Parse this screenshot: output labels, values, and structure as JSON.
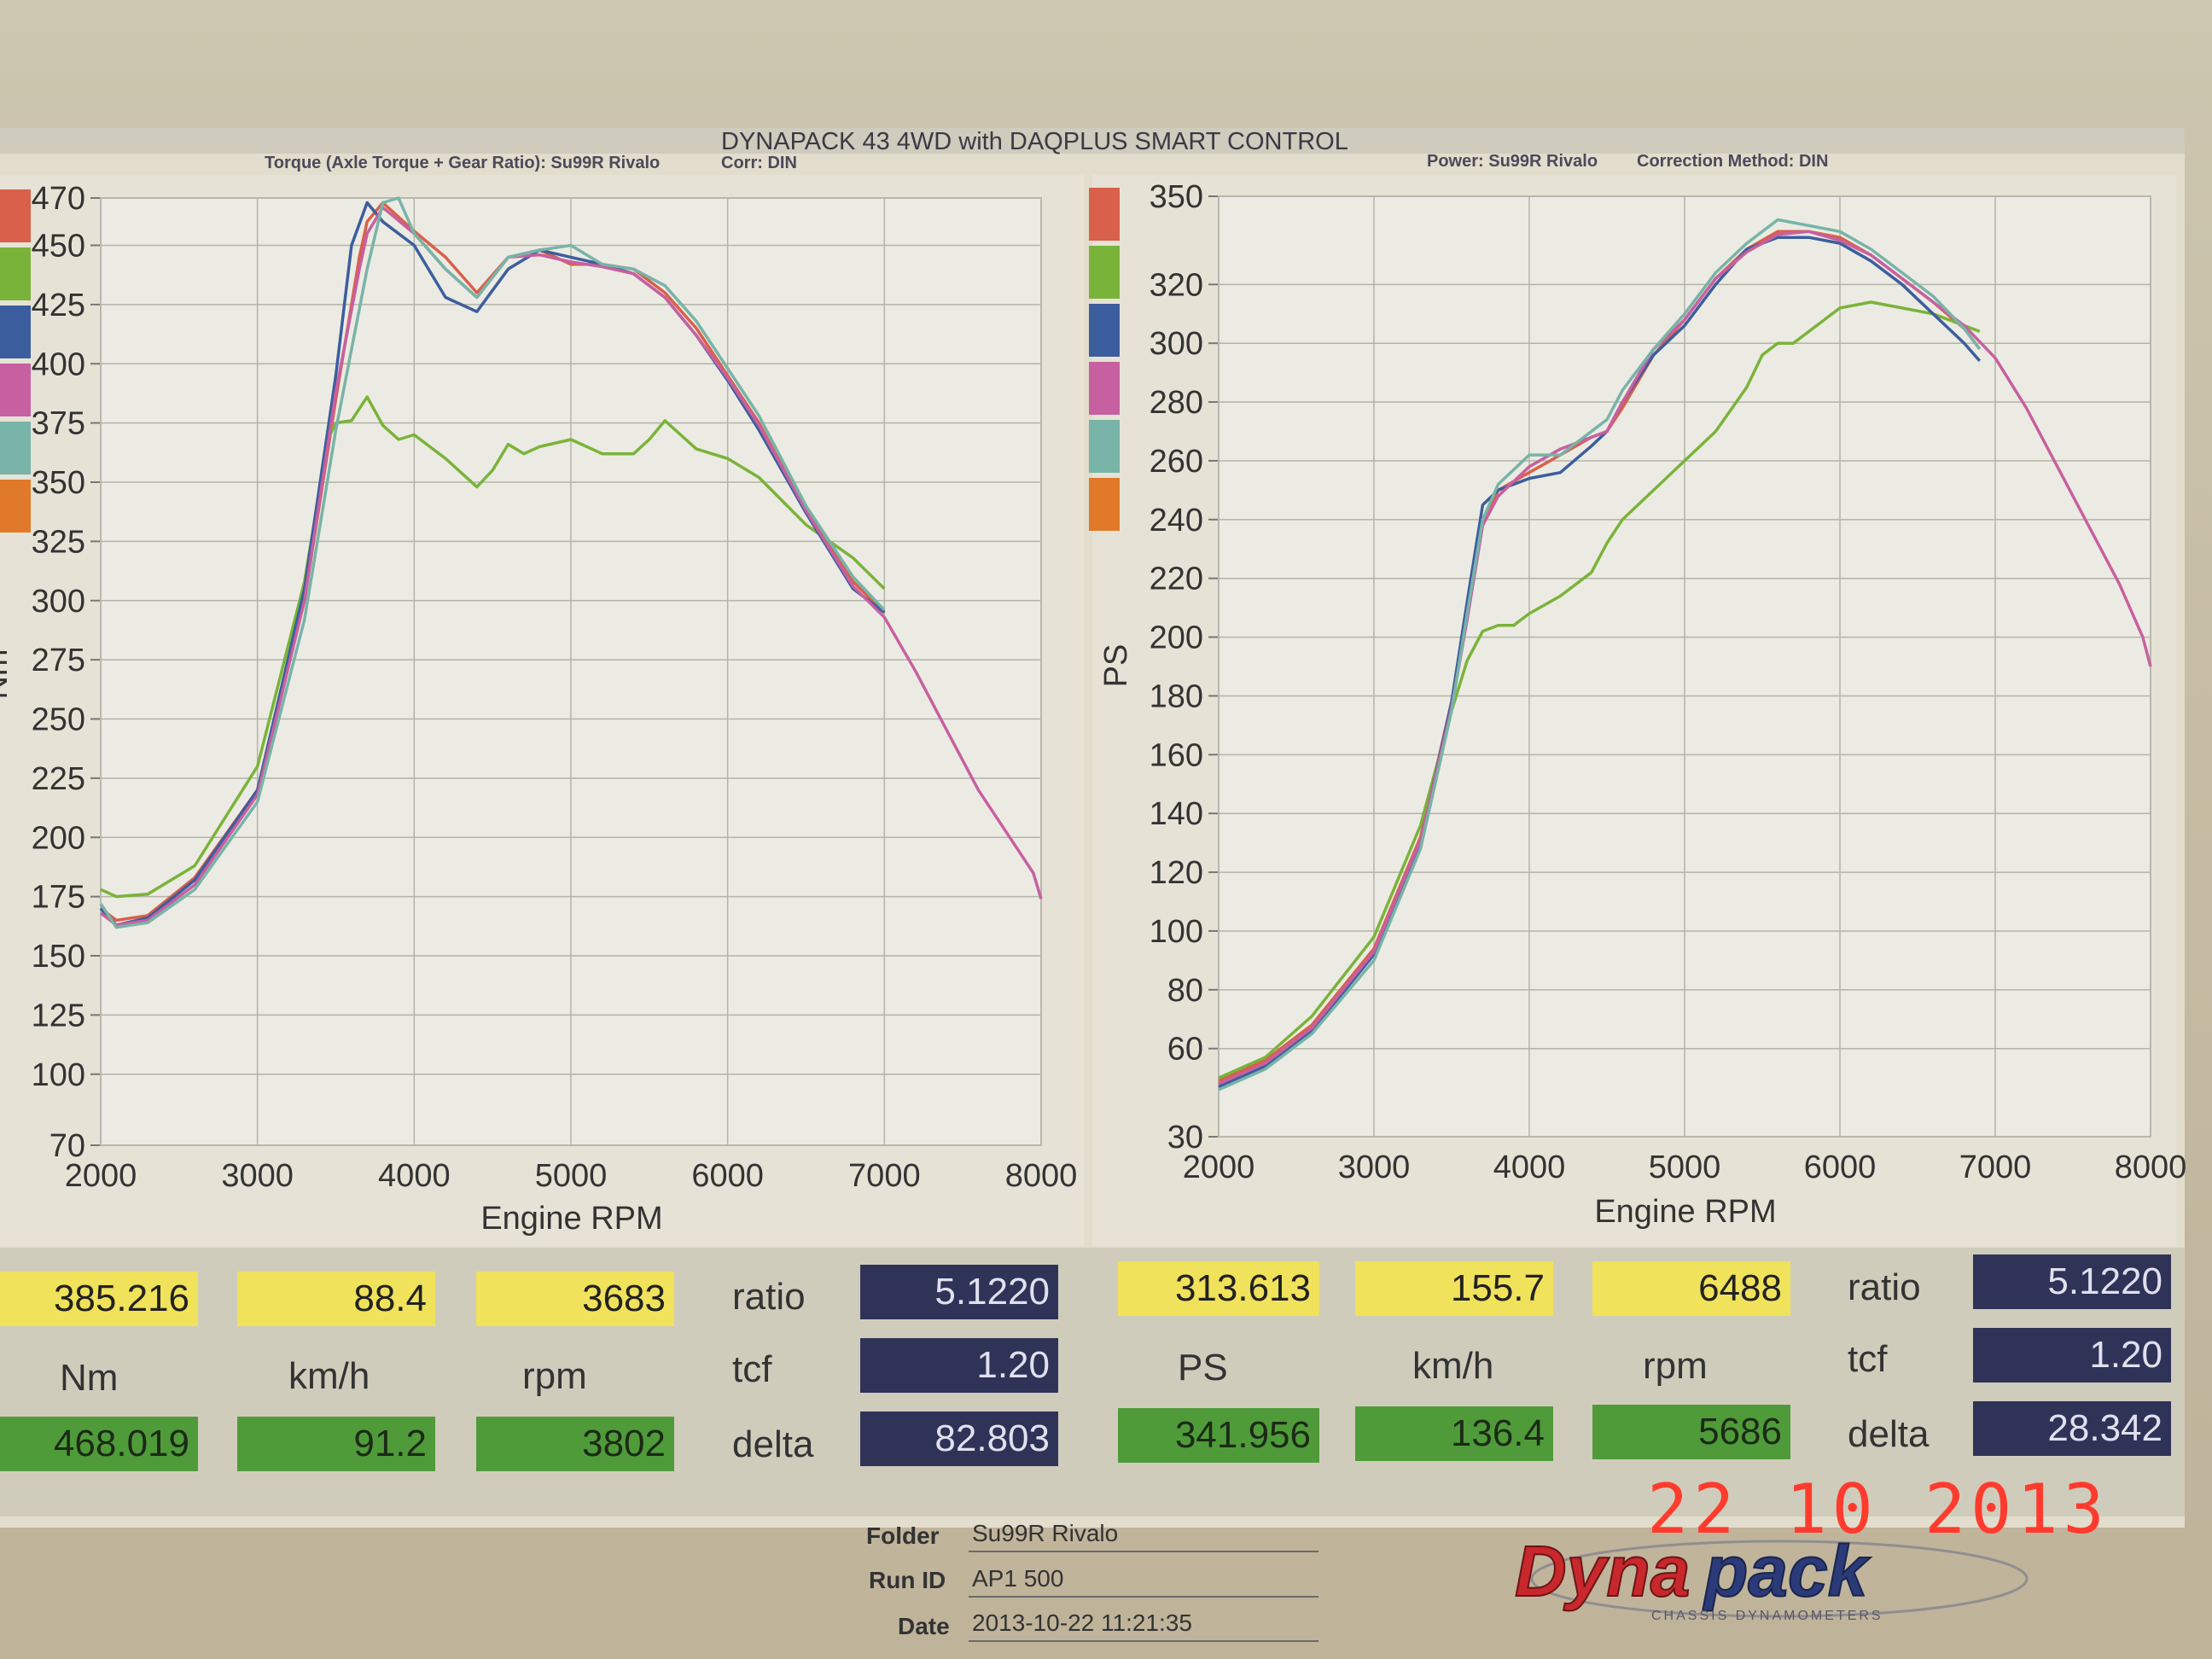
{
  "header": {
    "title": "DYNAPACK 43 4WD with DAQPLUS SMART CONTROL",
    "left_subtitle": "Torque (Axle Torque + Gear Ratio): Su99R Rivalo",
    "left_corr": "Corr: DIN",
    "right_subtitle": "Power: Su99R Rivalo",
    "right_corr": "Correction Method: DIN"
  },
  "colors": {
    "red": "#d9604a",
    "green": "#7ab33a",
    "blue": "#3c5e9e",
    "pink": "#c760a0",
    "teal": "#78b4a8",
    "orange": "#e07a2a"
  },
  "chart_data": [
    {
      "type": "line",
      "title": "",
      "xlabel": "Engine RPM",
      "ylabel": "Nm",
      "xlim": [
        2000,
        8000
      ],
      "ylim": [
        70,
        470
      ],
      "x_ticks": [
        2000,
        3000,
        4000,
        5000,
        6000,
        7000,
        8000
      ],
      "y_ticks": [
        70,
        100,
        125,
        150,
        175,
        200,
        225,
        250,
        275,
        300,
        325,
        350,
        375,
        400,
        425,
        450,
        470
      ],
      "grid": true,
      "legend": "left swatches",
      "series": [
        {
          "color": "red",
          "x": [
            2000,
            2100,
            2300,
            2600,
            3000,
            3300,
            3500,
            3650,
            3700,
            3800,
            4000,
            4200,
            4400,
            4600,
            4800,
            5000,
            5200,
            5400,
            5600,
            5800,
            6000,
            6200,
            6500,
            6800,
            7000
          ],
          "y": [
            170,
            165,
            167,
            183,
            220,
            300,
            385,
            445,
            460,
            468,
            456,
            445,
            430,
            445,
            448,
            442,
            442,
            440,
            430,
            415,
            395,
            375,
            338,
            308,
            295
          ]
        },
        {
          "color": "green",
          "x": [
            2000,
            2100,
            2300,
            2600,
            3000,
            3300,
            3450,
            3500,
            3600,
            3700,
            3800,
            3900,
            4000,
            4200,
            4400,
            4500,
            4600,
            4700,
            4800,
            5000,
            5200,
            5400,
            5500,
            5600,
            5700,
            5800,
            6000,
            6200,
            6500,
            6800,
            7000
          ],
          "y": [
            178,
            175,
            176,
            188,
            230,
            308,
            368,
            375,
            376,
            386,
            374,
            368,
            370,
            360,
            348,
            355,
            366,
            362,
            365,
            368,
            362,
            362,
            368,
            376,
            370,
            364,
            360,
            352,
            332,
            318,
            305
          ]
        },
        {
          "color": "blue",
          "x": [
            2000,
            2100,
            2300,
            2600,
            3000,
            3300,
            3500,
            3600,
            3700,
            3800,
            4000,
            4200,
            4400,
            4600,
            4800,
            5000,
            5200,
            5400,
            5600,
            5800,
            6000,
            6200,
            6500,
            6800,
            7000
          ],
          "y": [
            170,
            163,
            166,
            182,
            220,
            305,
            395,
            450,
            468,
            460,
            450,
            428,
            422,
            440,
            448,
            445,
            442,
            438,
            428,
            412,
            393,
            372,
            337,
            305,
            295
          ]
        },
        {
          "color": "pink",
          "x": [
            2000,
            2100,
            2300,
            2600,
            3000,
            3300,
            3500,
            3650,
            3700,
            3800,
            4000,
            4200,
            4400,
            4600,
            4800,
            5000,
            5200,
            5400,
            5600,
            5800,
            6000,
            6200,
            6500,
            6800,
            7000,
            7200,
            7400,
            7600,
            7800,
            7950,
            8000
          ],
          "y": [
            168,
            163,
            165,
            180,
            218,
            300,
            388,
            440,
            455,
            466,
            455,
            440,
            428,
            445,
            446,
            443,
            441,
            438,
            428,
            412,
            394,
            374,
            338,
            306,
            293,
            270,
            245,
            220,
            200,
            185,
            174
          ]
        },
        {
          "color": "teal",
          "x": [
            2000,
            2100,
            2300,
            2600,
            3000,
            3300,
            3500,
            3700,
            3800,
            3900,
            4000,
            4200,
            4400,
            4600,
            4800,
            5000,
            5200,
            5400,
            5600,
            5800,
            6000,
            6200,
            6500,
            6800,
            7000
          ],
          "y": [
            172,
            162,
            164,
            178,
            215,
            292,
            372,
            440,
            468,
            470,
            455,
            440,
            428,
            445,
            448,
            450,
            442,
            440,
            433,
            418,
            398,
            378,
            340,
            310,
            296
          ]
        }
      ]
    },
    {
      "type": "line",
      "title": "",
      "xlabel": "Engine RPM",
      "ylabel": "PS",
      "xlim": [
        2000,
        8000
      ],
      "ylim": [
        30,
        350
      ],
      "x_ticks": [
        2000,
        3000,
        4000,
        5000,
        6000,
        7000,
        8000
      ],
      "y_ticks": [
        30,
        60,
        80,
        100,
        120,
        140,
        160,
        180,
        200,
        220,
        240,
        260,
        280,
        300,
        320,
        350
      ],
      "grid": true,
      "legend": "left swatches",
      "series": [
        {
          "color": "red",
          "x": [
            2000,
            2300,
            2600,
            3000,
            3300,
            3500,
            3600,
            3700,
            3800,
            4000,
            4200,
            4400,
            4500,
            4600,
            4800,
            5000,
            5200,
            5400,
            5600,
            5800,
            6000,
            6200,
            6400,
            6600,
            6800,
            6900
          ],
          "y": [
            49,
            56,
            68,
            94,
            132,
            178,
            208,
            240,
            250,
            256,
            262,
            268,
            270,
            278,
            296,
            308,
            322,
            332,
            338,
            338,
            336,
            330,
            322,
            314,
            305,
            298
          ]
        },
        {
          "color": "green",
          "x": [
            2000,
            2300,
            2600,
            3000,
            3300,
            3500,
            3600,
            3700,
            3800,
            3900,
            4000,
            4200,
            4400,
            4500,
            4600,
            4800,
            5000,
            5200,
            5400,
            5500,
            5600,
            5700,
            5800,
            6000,
            6200,
            6400,
            6600,
            6800,
            6900
          ],
          "y": [
            50,
            57,
            71,
            98,
            136,
            175,
            192,
            202,
            204,
            204,
            208,
            214,
            222,
            232,
            240,
            250,
            260,
            270,
            285,
            296,
            300,
            300,
            304,
            312,
            314,
            312,
            310,
            306,
            304
          ]
        },
        {
          "color": "blue",
          "x": [
            2000,
            2300,
            2600,
            3000,
            3300,
            3500,
            3600,
            3700,
            3800,
            4000,
            4200,
            4400,
            4500,
            4600,
            4800,
            5000,
            5200,
            5400,
            5600,
            5800,
            6000,
            6200,
            6400,
            6600,
            6800,
            6900
          ],
          "y": [
            47,
            54,
            66,
            92,
            130,
            178,
            212,
            245,
            250,
            254,
            256,
            265,
            270,
            280,
            296,
            306,
            320,
            332,
            336,
            336,
            334,
            328,
            320,
            310,
            300,
            294
          ]
        },
        {
          "color": "pink",
          "x": [
            2000,
            2300,
            2600,
            3000,
            3300,
            3500,
            3600,
            3700,
            3800,
            4000,
            4200,
            4400,
            4500,
            4600,
            4800,
            5000,
            5200,
            5400,
            5600,
            5800,
            6000,
            6200,
            6400,
            6600,
            6800,
            7000,
            7200,
            7400,
            7600,
            7800,
            7950,
            8000
          ],
          "y": [
            48,
            55,
            67,
            93,
            131,
            176,
            206,
            238,
            248,
            258,
            264,
            268,
            270,
            280,
            298,
            308,
            322,
            331,
            337,
            338,
            335,
            330,
            322,
            314,
            306,
            295,
            278,
            258,
            238,
            218,
            200,
            190
          ]
        },
        {
          "color": "teal",
          "x": [
            2000,
            2300,
            2600,
            3000,
            3300,
            3500,
            3600,
            3700,
            3800,
            4000,
            4200,
            4400,
            4500,
            4600,
            4800,
            5000,
            5200,
            5400,
            5600,
            5800,
            6000,
            6200,
            6400,
            6600,
            6800,
            6900
          ],
          "y": [
            46,
            53,
            65,
            90,
            128,
            175,
            208,
            240,
            252,
            262,
            262,
            270,
            274,
            284,
            298,
            310,
            324,
            334,
            342,
            340,
            338,
            332,
            324,
            316,
            305,
            298
          ]
        }
      ]
    }
  ],
  "legend_left": [
    "red",
    "green",
    "blue",
    "pink",
    "teal",
    "orange"
  ],
  "legend_right": [
    "red",
    "green",
    "blue",
    "pink",
    "teal",
    "orange"
  ],
  "left_readouts": {
    "top": [
      "385.216",
      "88.4",
      "3683"
    ],
    "units": [
      "Nm",
      "km/h",
      "rpm"
    ],
    "bottom": [
      "468.019",
      "91.2",
      "3802"
    ],
    "side_labels": [
      "ratio",
      "tcf",
      "delta"
    ],
    "side_values": [
      "5.1220",
      "1.20",
      "82.803"
    ]
  },
  "right_readouts": {
    "top": [
      "313.613",
      "155.7",
      "6488"
    ],
    "units": [
      "PS",
      "km/h",
      "rpm"
    ],
    "bottom": [
      "341.956",
      "136.4",
      "5686"
    ],
    "side_labels": [
      "ratio",
      "tcf",
      "delta"
    ],
    "side_values": [
      "5.1220",
      "1.20",
      "28.342"
    ]
  },
  "info": {
    "folder_label": "Folder",
    "folder_value": "Su99R Rivalo",
    "runid_label": "Run ID",
    "runid_value": "AP1 500",
    "date_label": "Date",
    "date_value": "2013-10-22 11:21:35"
  },
  "datestamp": "22 10 2013",
  "logo": {
    "text": "Dynapack",
    "tagline": "CHASSIS DYNAMOMETERS"
  }
}
